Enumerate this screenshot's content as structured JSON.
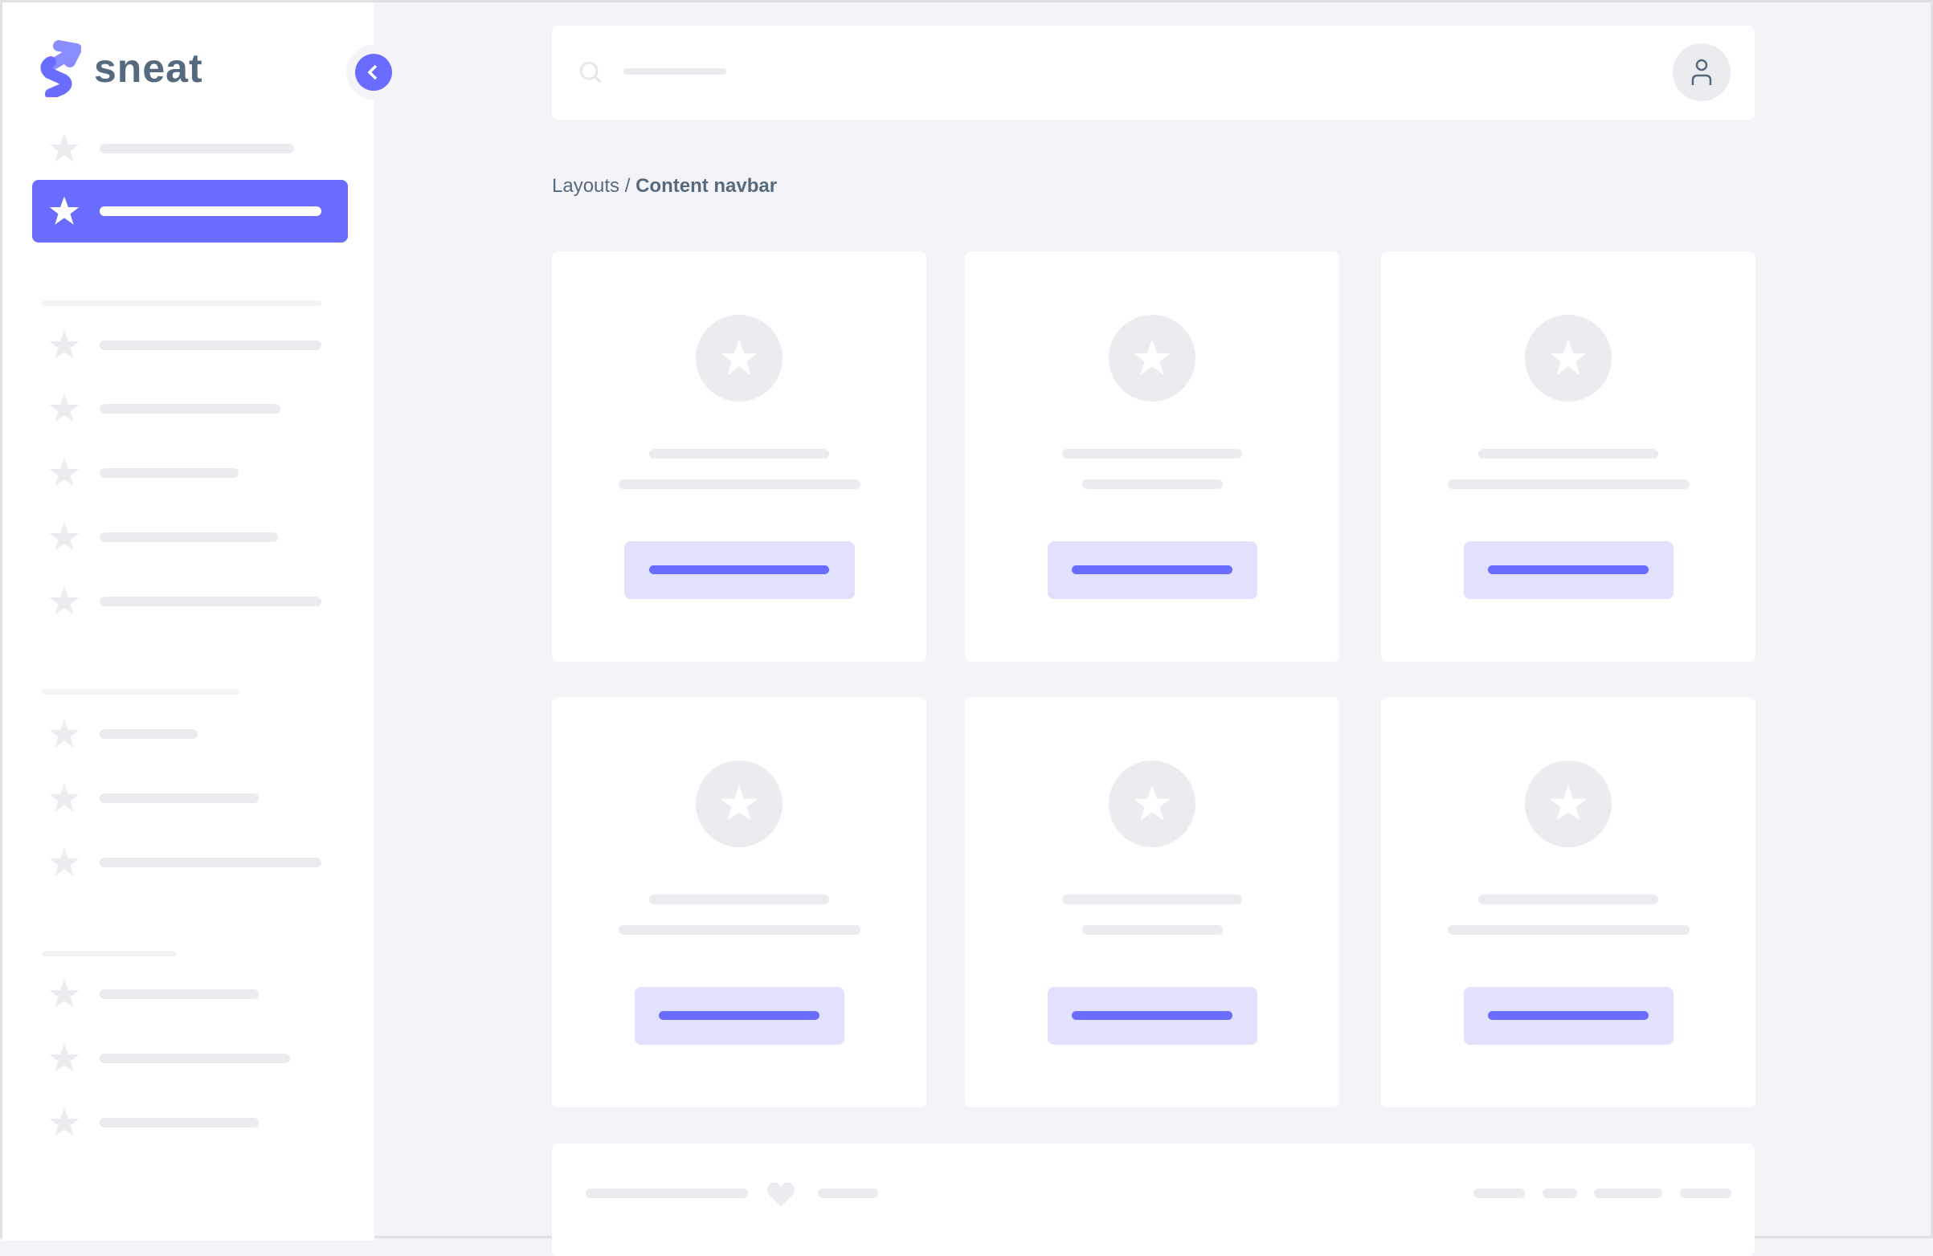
{
  "brand": {
    "name": "sneat",
    "color": "#696cff"
  },
  "breadcrumb": {
    "parent": "Layouts",
    "separator": " / ",
    "current": "Content navbar"
  },
  "colors": {
    "primary": "#696cff",
    "primary_light": "#e1e1fe",
    "placeholder": "#ebecef",
    "text": "#566a7f"
  }
}
